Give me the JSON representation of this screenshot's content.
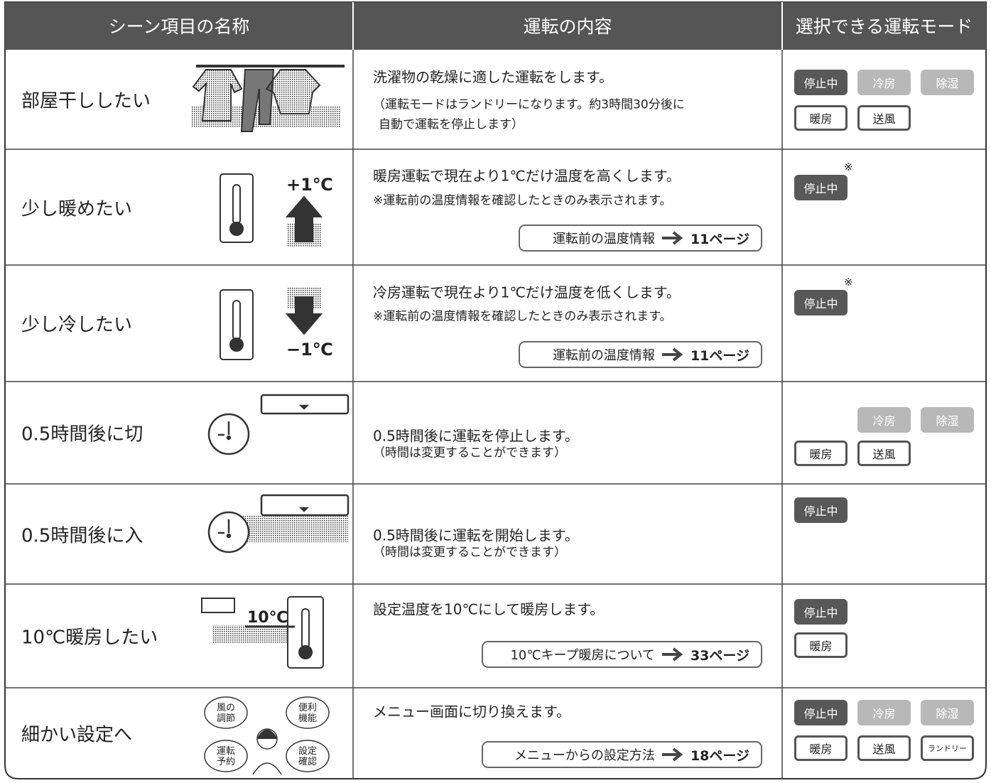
{
  "header": {
    "scene": "シーン項目の名称",
    "content": "運転の内容",
    "modes": "選択できる運転モード"
  },
  "rows": [
    {
      "name": "部屋干ししたい",
      "description": "洗濯物の乾燥に適した運転をします。",
      "notes": [
        "（運転モードはランドリーになります。約3時間30分後に",
        "自動で運転を停止します）"
      ],
      "modes": [
        [
          "停止中",
          "冷房",
          "除湿"
        ],
        [
          "暖房",
          "送風"
        ]
      ]
    },
    {
      "name": "少し暖めたい",
      "icon_text": [
        "+1℃"
      ],
      "description": "暖房運転で現在より1℃だけ温度を高くします。",
      "notes": [
        "※運転前の温度情報を確認したときのみ表示されます。"
      ],
      "link": {
        "text": "運転前の温度情報",
        "page": "11ページ"
      },
      "modes": [
        [
          "停止中"
        ]
      ],
      "mode_mark": "※"
    },
    {
      "name": "少し冷したい",
      "icon_text": [
        "−1℃"
      ],
      "description": "冷房運転で現在より1℃だけ温度を低くします。",
      "notes": [
        "※運転前の温度情報を確認したときのみ表示されます。"
      ],
      "link": {
        "text": "運転前の温度情報",
        "page": "11ページ"
      },
      "modes": [
        [
          "停止中"
        ]
      ],
      "mode_mark": "※"
    },
    {
      "name": "0.5時間後に切",
      "description": "0.5時間後に運転を停止します。",
      "notes": [
        "（時間は変更することができます）"
      ],
      "modes": [
        [
          null,
          "冷房",
          "除湿"
        ],
        [
          "暖房",
          "送風"
        ]
      ]
    },
    {
      "name": "0.5時間後に入",
      "description": "0.5時間後に運転を開始します。",
      "notes": [
        "（時間は変更することができます）"
      ],
      "modes": [
        [
          "停止中"
        ]
      ]
    },
    {
      "name": "10℃暖房したい",
      "icon_text": [
        "10℃"
      ],
      "description": "設定温度を10℃にして暖房します。",
      "link": {
        "text": "10℃キープ暖房について",
        "page": "33ページ"
      },
      "modes": [
        [
          "停止中"
        ],
        [
          "暖房"
        ]
      ]
    },
    {
      "name": "細かい設定へ",
      "icon_text": [
        "風の",
        "調節",
        "便利",
        "機能",
        "運転",
        "予約",
        "設定",
        "確認"
      ],
      "description": "メニュー画面に切り換えます。",
      "link": {
        "text": "メニューからの設定方法",
        "page": "18ページ"
      },
      "modes": [
        [
          "停止中",
          "冷房",
          "除湿"
        ],
        [
          "暖房",
          "送風",
          "ランドリー"
        ]
      ]
    }
  ]
}
